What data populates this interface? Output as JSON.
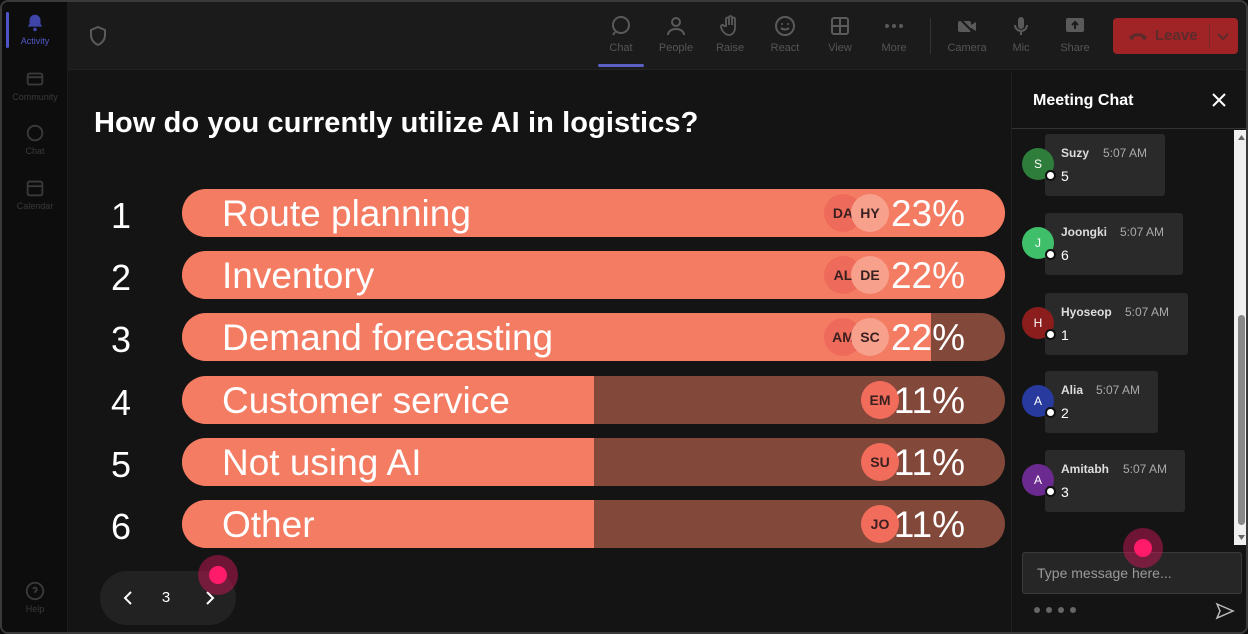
{
  "rail": {
    "items": [
      {
        "label": "Activity",
        "icon": "bell-icon",
        "active": true
      },
      {
        "label": "Community",
        "icon": "community-icon",
        "active": false
      },
      {
        "label": "Chat",
        "icon": "chat-icon",
        "active": false
      },
      {
        "label": "Calendar",
        "icon": "calendar-icon",
        "active": false
      }
    ],
    "help": {
      "label": "Help",
      "icon": "help-icon"
    }
  },
  "toolbar": {
    "buttons": [
      {
        "label": "Chat",
        "icon": "chat-icon",
        "active": true
      },
      {
        "label": "People",
        "icon": "people-icon",
        "active": false
      },
      {
        "label": "Raise",
        "icon": "hand-icon",
        "active": false
      },
      {
        "label": "React",
        "icon": "smiley-icon",
        "active": false
      },
      {
        "label": "View",
        "icon": "grid-icon",
        "active": false
      },
      {
        "label": "More",
        "icon": "more-icon",
        "active": false
      },
      {
        "label": "Camera",
        "icon": "camera-off-icon",
        "active": false
      },
      {
        "label": "Mic",
        "icon": "mic-icon",
        "active": false
      },
      {
        "label": "Share",
        "icon": "share-icon",
        "active": false
      }
    ],
    "leave_label": "Leave",
    "leave_color": "#a02326"
  },
  "poll": {
    "question": "How do you currently utilize AI in logistics?",
    "options": [
      {
        "num": "1",
        "label": "Route planning",
        "percent": "23%",
        "fill": 1.0,
        "avatars": [
          "DA",
          "HY"
        ]
      },
      {
        "num": "2",
        "label": "Inventory",
        "percent": "22%",
        "fill": 1.0,
        "avatars": [
          "AL",
          "DE"
        ]
      },
      {
        "num": "3",
        "label": "Demand forecasting",
        "percent": "22%",
        "fill": 0.91,
        "avatars": [
          "AM",
          "SC"
        ]
      },
      {
        "num": "4",
        "label": "Customer service",
        "percent": "11%",
        "fill": 0.5,
        "avatars": [
          "EM"
        ]
      },
      {
        "num": "5",
        "label": "Not using AI",
        "percent": "11%",
        "fill": 0.5,
        "avatars": [
          "SU"
        ]
      },
      {
        "num": "6",
        "label": "Other",
        "percent": "11%",
        "fill": 0.5,
        "avatars": [
          "JO"
        ]
      }
    ],
    "page": "3",
    "bar_color": "#f47c63",
    "track_color": "#82483a"
  },
  "chat": {
    "title": "Meeting Chat",
    "messages": [
      {
        "initial": "S",
        "name": "Suzy",
        "time": "5:07 AM",
        "text": "5",
        "color": "#2e7d3a"
      },
      {
        "initial": "J",
        "name": "Joongki",
        "time": "5:07 AM",
        "text": "6",
        "color": "#3fbf6a"
      },
      {
        "initial": "H",
        "name": "Hyoseop",
        "time": "5:07 AM",
        "text": "1",
        "color": "#8b1d1d"
      },
      {
        "initial": "A",
        "name": "Alia",
        "time": "5:07 AM",
        "text": "2",
        "color": "#283a9e"
      },
      {
        "initial": "A",
        "name": "Amitabh",
        "time": "5:07 AM",
        "text": "3",
        "color": "#6b2a8f"
      }
    ],
    "input_placeholder": "Type message here..."
  }
}
